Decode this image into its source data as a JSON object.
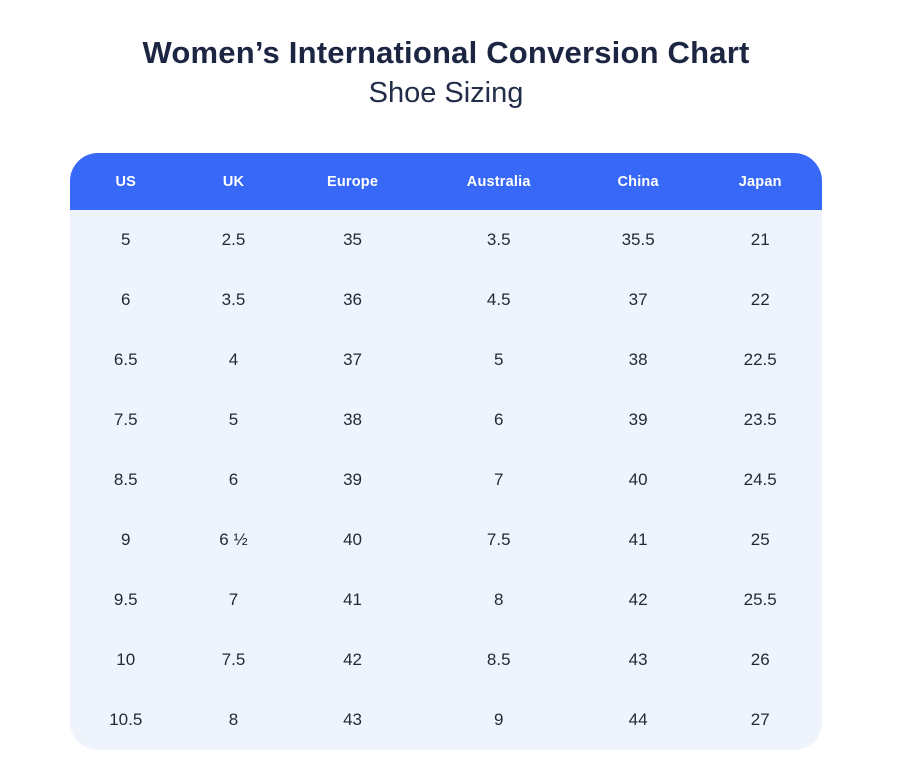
{
  "page": {
    "title": "Women’s International Conversion Chart",
    "subtitle": "Shoe Sizing"
  },
  "colors": {
    "header_bg": "#3768f8",
    "header_text": "#ffffff",
    "body_bg": "#eff3fc",
    "title_text": "#1c2542",
    "cell_text": "#1f2938",
    "page_bg": "#ffffff"
  },
  "table": {
    "columns": [
      "US",
      "UK",
      "Europe",
      "Australia",
      "China",
      "Japan"
    ],
    "rows": [
      [
        "5",
        "2.5",
        "35",
        "3.5",
        "35.5",
        "21"
      ],
      [
        "6",
        "3.5",
        "36",
        "4.5",
        "37",
        "22"
      ],
      [
        "6.5",
        "4",
        "37",
        "5",
        "38",
        "22.5"
      ],
      [
        "7.5",
        "5",
        "38",
        "6",
        "39",
        "23.5"
      ],
      [
        "8.5",
        "6",
        "39",
        "7",
        "40",
        "24.5"
      ],
      [
        "9",
        "6 ½",
        "40",
        "7.5",
        "41",
        "25"
      ],
      [
        "9.5",
        "7",
        "41",
        "8",
        "42",
        "25.5"
      ],
      [
        "10",
        "7.5",
        "42",
        "8.5",
        "43",
        "26"
      ],
      [
        "10.5",
        "8",
        "43",
        "9",
        "44",
        "27"
      ]
    ]
  },
  "chart_data": {
    "type": "table",
    "title": "Women’s International Conversion Chart",
    "subtitle": "Shoe Sizing",
    "columns": [
      "US",
      "UK",
      "Europe",
      "Australia",
      "China",
      "Japan"
    ],
    "rows": [
      [
        "5",
        "2.5",
        "35",
        "3.5",
        "35.5",
        "21"
      ],
      [
        "6",
        "3.5",
        "36",
        "4.5",
        "37",
        "22"
      ],
      [
        "6.5",
        "4",
        "37",
        "5",
        "38",
        "22.5"
      ],
      [
        "7.5",
        "5",
        "38",
        "6",
        "39",
        "23.5"
      ],
      [
        "8.5",
        "6",
        "39",
        "7",
        "40",
        "24.5"
      ],
      [
        "9",
        "6 ½",
        "40",
        "7.5",
        "41",
        "25"
      ],
      [
        "9.5",
        "7",
        "41",
        "8",
        "42",
        "25.5"
      ],
      [
        "10",
        "7.5",
        "42",
        "8.5",
        "43",
        "26"
      ],
      [
        "10.5",
        "8",
        "43",
        "9",
        "44",
        "27"
      ]
    ],
    "layout": {
      "header_position": "top",
      "grid": false,
      "header_bg": "#3768f8",
      "body_bg": "#eff3fc"
    }
  }
}
